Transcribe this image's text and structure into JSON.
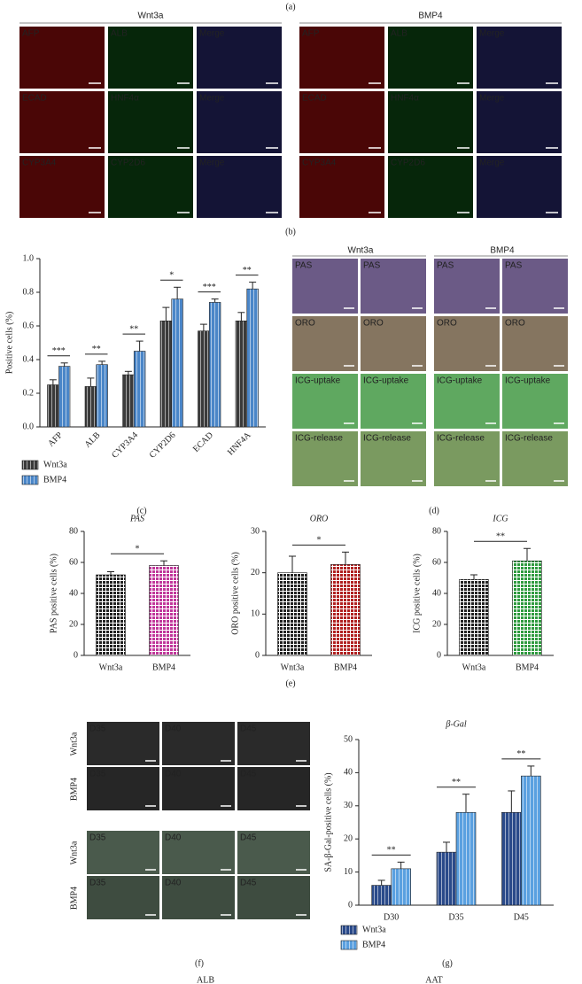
{
  "panel_labels": {
    "a": "(a)",
    "b": "(b)",
    "c": "(c)",
    "d": "(d)",
    "e": "(e)",
    "f": "(f)",
    "g": "(g)"
  },
  "figure_b": {
    "groups": [
      "Wnt3a",
      "BMP4"
    ],
    "rows": [
      [
        "AFP",
        "ALB",
        "Merge"
      ],
      [
        "ECAD",
        "HNF4α",
        "Merge"
      ],
      [
        "CYP3A4",
        "CYP2D6",
        "Merge"
      ]
    ]
  },
  "figure_d": {
    "groups": [
      "Wnt3a",
      "BMP4"
    ],
    "rows": [
      "PAS",
      "ORO",
      "ICG-uptake",
      "ICG-release"
    ]
  },
  "figure_f": {
    "rows": [
      "Wnt3a",
      "BMP4",
      "Wnt3a",
      "BMP4"
    ],
    "days": [
      "D35",
      "D40",
      "D45"
    ]
  },
  "footer": [
    "ALB",
    "AAT"
  ],
  "chart_data": [
    {
      "type": "bar",
      "y_label": "Positive cells (%)",
      "categories": [
        "AFP",
        "ALB",
        "CYP3A4",
        "CYP2D6",
        "ECAD",
        "HNF4A"
      ],
      "series": [
        {
          "name": "Wnt3a",
          "color": "#3a3a3a",
          "values": [
            0.25,
            0.24,
            0.31,
            0.63,
            0.57,
            0.63
          ],
          "errors": [
            0.03,
            0.05,
            0.02,
            0.08,
            0.04,
            0.05
          ]
        },
        {
          "name": "BMP4",
          "color": "#4a86c8",
          "values": [
            0.36,
            0.37,
            0.45,
            0.76,
            0.74,
            0.82
          ],
          "errors": [
            0.02,
            0.02,
            0.06,
            0.07,
            0.02,
            0.04
          ]
        }
      ],
      "annotations": [
        "***",
        "**",
        "**",
        "*",
        "***",
        "**"
      ],
      "ylim": [
        0,
        1.0
      ],
      "yticks": [
        {
          "value": 0,
          "label": "0.0"
        },
        {
          "value": 0.2,
          "label": "0.2"
        },
        {
          "value": 0.4,
          "label": "0.4"
        },
        {
          "value": 0.6,
          "label": "0.6"
        },
        {
          "value": 0.8,
          "label": "0.8"
        },
        {
          "value": 1.0,
          "label": "1.0"
        }
      ],
      "legend": "bottom-left"
    },
    {
      "type": "bar",
      "title": "PAS",
      "y_label": "PAS positive cells (%)",
      "categories": [
        "Wnt3a",
        "BMP4"
      ],
      "values": [
        52,
        58
      ],
      "errors": [
        2,
        3
      ],
      "colors": [
        "#222222",
        "#c0369a"
      ],
      "annotations": [
        "*"
      ],
      "ylim": [
        0,
        80
      ],
      "yticks": [
        0,
        20,
        40,
        60,
        80
      ]
    },
    {
      "type": "bar",
      "title": "ORO",
      "y_label": "ORO positive cells (%)",
      "categories": [
        "Wnt3a",
        "BMP4"
      ],
      "values": [
        20,
        22
      ],
      "errors": [
        4,
        3
      ],
      "colors": [
        "#222222",
        "#b02020"
      ],
      "annotations": [
        "*"
      ],
      "ylim": [
        0,
        30
      ],
      "yticks": [
        0,
        10,
        20,
        30
      ]
    },
    {
      "type": "bar",
      "title": "ICG",
      "y_label": "ICG positive cells (%)",
      "categories": [
        "Wnt3a",
        "BMP4"
      ],
      "values": [
        49,
        61
      ],
      "errors": [
        3,
        8
      ],
      "colors": [
        "#222222",
        "#2e9a3e"
      ],
      "annotations": [
        "**"
      ],
      "ylim": [
        0,
        80
      ],
      "yticks": [
        0,
        20,
        40,
        60,
        80
      ]
    },
    {
      "type": "bar",
      "title": "β-Gal",
      "y_label": "SA-β-Gal-positive cells (%)",
      "categories": [
        "D30",
        "D35",
        "D45"
      ],
      "series": [
        {
          "name": "Wnt3a",
          "color": "#2a4a8a",
          "values": [
            6,
            16,
            28
          ],
          "errors": [
            1.5,
            3,
            6.5
          ]
        },
        {
          "name": "BMP4",
          "color": "#5aa0e0",
          "values": [
            11,
            28,
            39
          ],
          "errors": [
            2,
            5.5,
            3
          ]
        }
      ],
      "annotations": [
        "**",
        "**",
        "**"
      ],
      "ylim": [
        0,
        50
      ],
      "yticks": [
        0,
        10,
        20,
        30,
        40,
        50
      ],
      "legend": "bottom-left"
    }
  ]
}
